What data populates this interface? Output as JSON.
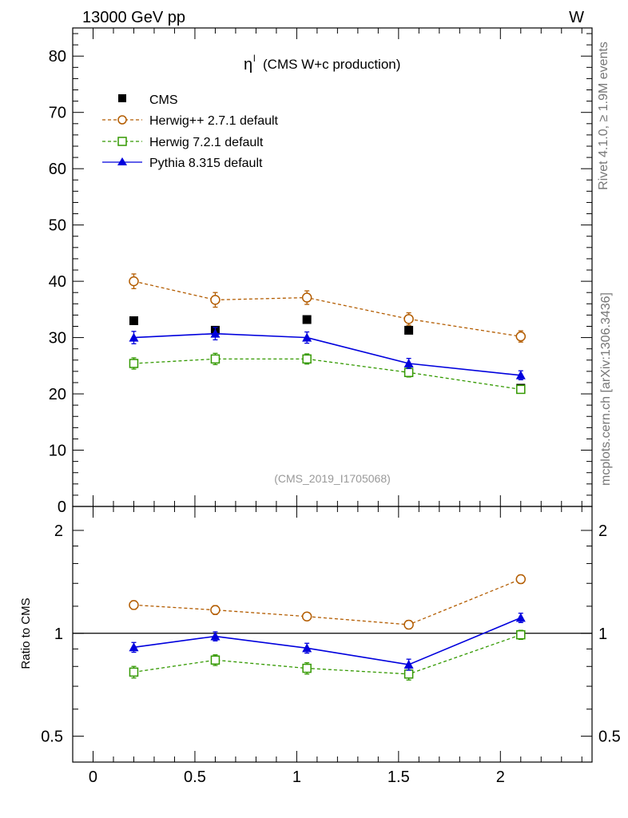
{
  "header": {
    "left": "13000 GeV pp",
    "right": "W"
  },
  "side_labels": {
    "rivet": "Rivet 4.1.0, ≥ 1.9M events",
    "source": "mcplots.cern.ch [arXiv:1306.3436]"
  },
  "analysis_id": "(CMS_2019_I1705068)",
  "colors": {
    "cms": "#000000",
    "herwig_pp": "#b35c00",
    "herwig7": "#339900",
    "pythia": "#0000dd"
  },
  "chart_data": [
    {
      "type": "scatter",
      "panel": "main",
      "title": "η",
      "title_superscript": "l",
      "title_rest": "(CMS W+c production)",
      "xlabel": "",
      "ylabel": "",
      "xlim": [
        -0.1,
        2.45
      ],
      "ylim": [
        0,
        85
      ],
      "yticks": [
        0,
        10,
        20,
        30,
        40,
        50,
        60,
        70,
        80
      ],
      "ytick_labels": [
        "0",
        "10",
        "20",
        "30",
        "40",
        "50",
        "60",
        "70",
        "80"
      ],
      "legend_position": "top-left",
      "x": [
        0.2,
        0.6,
        1.05,
        1.55,
        2.1
      ],
      "series": [
        {
          "name": "CMS",
          "key": "cms",
          "marker": "square-filled",
          "line": "none",
          "values": [
            33.0,
            31.3,
            33.2,
            31.3,
            21.0
          ],
          "errors": [
            0,
            0,
            0,
            0,
            0
          ]
        },
        {
          "name": "Herwig++ 2.7.1 default",
          "key": "herwig_pp",
          "marker": "circle-open",
          "line": "dashed",
          "values": [
            40.0,
            36.7,
            37.1,
            33.3,
            30.2
          ],
          "errors": [
            1.3,
            1.3,
            1.2,
            1.1,
            1.0
          ]
        },
        {
          "name": "Herwig 7.2.1 default",
          "key": "herwig7",
          "marker": "square-open",
          "line": "dashed",
          "values": [
            25.4,
            26.2,
            26.2,
            23.8,
            20.8
          ],
          "errors": [
            1.0,
            1.0,
            0.9,
            0.8,
            0.7
          ]
        },
        {
          "name": "Pythia 8.315 default",
          "key": "pythia",
          "marker": "triangle-filled",
          "line": "solid",
          "values": [
            30.0,
            30.7,
            30.0,
            25.4,
            23.3
          ],
          "errors": [
            1.1,
            1.1,
            1.0,
            0.9,
            0.8
          ]
        }
      ]
    },
    {
      "type": "scatter",
      "panel": "ratio",
      "ylabel": "Ratio to CMS",
      "xlabel": "",
      "scale": "log",
      "xlim": [
        -0.1,
        2.45
      ],
      "ylim": [
        0.42,
        2.35
      ],
      "yticks": [
        0.5,
        1,
        2
      ],
      "ytick_labels": [
        "0.5",
        "1",
        "2"
      ],
      "xticks": [
        0,
        0.5,
        1,
        1.5,
        2
      ],
      "xtick_labels": [
        "0",
        "0.5",
        "1",
        "1.5",
        "2"
      ],
      "x": [
        0.2,
        0.6,
        1.05,
        1.55,
        2.1
      ],
      "series": [
        {
          "name": "Herwig++ 2.7.1 default",
          "key": "herwig_pp",
          "marker": "circle-open",
          "line": "dashed",
          "values": [
            1.21,
            1.17,
            1.12,
            1.06,
            1.44
          ],
          "errors": [
            0.035,
            0.035,
            0.03,
            0.03,
            0.04
          ]
        },
        {
          "name": "Herwig 7.2.1 default",
          "key": "herwig7",
          "marker": "square-open",
          "line": "dashed",
          "values": [
            0.77,
            0.835,
            0.79,
            0.76,
            0.99
          ],
          "errors": [
            0.03,
            0.03,
            0.03,
            0.03,
            0.03
          ]
        },
        {
          "name": "Pythia 8.315 default",
          "key": "pythia",
          "marker": "triangle-filled",
          "line": "solid",
          "values": [
            0.91,
            0.98,
            0.905,
            0.81,
            1.11
          ],
          "errors": [
            0.03,
            0.03,
            0.03,
            0.03,
            0.035
          ]
        }
      ]
    }
  ]
}
